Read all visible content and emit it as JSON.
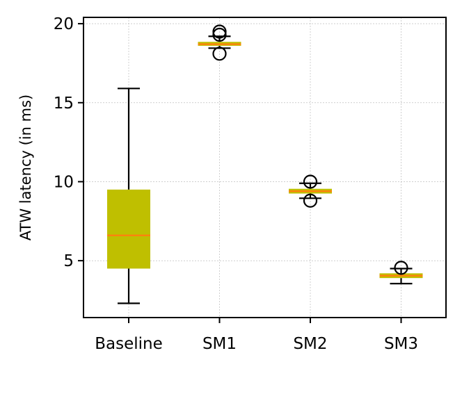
{
  "chart_data": {
    "type": "box",
    "categories": [
      "Baseline",
      "SM1",
      "SM2",
      "SM3"
    ],
    "ylabel": "ATW latency (in ms)",
    "xlabel": "",
    "title": "",
    "ylim": [
      1.4,
      20.4
    ],
    "yticks": [
      5,
      10,
      15,
      20
    ],
    "grid": true,
    "legend": "none",
    "colors": {
      "box_fill": "#bfbf00",
      "median": "#ff7f0e",
      "whisker": "#000000",
      "grid": "#b0b0b0"
    },
    "boxes": [
      {
        "category": "Baseline",
        "whisker_low": 2.3,
        "q1": 4.5,
        "median": 6.6,
        "q3": 9.5,
        "whisker_high": 15.9,
        "fliers": []
      },
      {
        "category": "SM1",
        "whisker_low": 18.45,
        "q1": 18.6,
        "median": 18.7,
        "q3": 18.85,
        "whisker_high": 19.2,
        "fliers": [
          18.1,
          19.3,
          19.5
        ]
      },
      {
        "category": "SM2",
        "whisker_low": 8.95,
        "q1": 9.25,
        "median": 9.4,
        "q3": 9.55,
        "whisker_high": 9.9,
        "fliers": [
          8.8,
          10.0
        ]
      },
      {
        "category": "SM3",
        "whisker_low": 3.55,
        "q1": 3.9,
        "median": 4.05,
        "q3": 4.2,
        "whisker_high": 4.5,
        "fliers": [
          4.55
        ]
      }
    ]
  }
}
